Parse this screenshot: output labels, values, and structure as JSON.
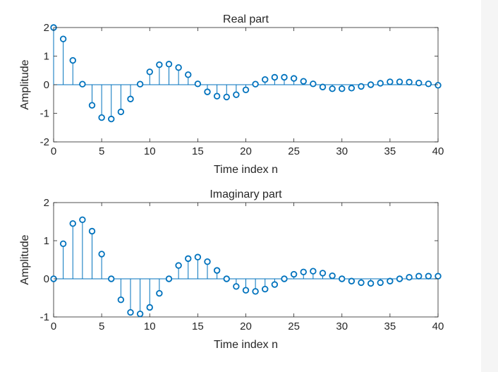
{
  "colors": {
    "stem": "#0072BD",
    "axis": "#262626",
    "background": "#ffffff",
    "page": "#f5f5f5"
  },
  "chart_data": [
    {
      "type": "stem",
      "title": "Real part",
      "xlabel": "Time index n",
      "ylabel": "Amplitude",
      "xlim": [
        0,
        40
      ],
      "ylim": [
        -2,
        2
      ],
      "xticks": [
        0,
        5,
        10,
        15,
        20,
        25,
        30,
        35,
        40
      ],
      "yticks": [
        -2,
        -1,
        0,
        1,
        2
      ],
      "x": [
        0,
        1,
        2,
        3,
        4,
        5,
        6,
        7,
        8,
        9,
        10,
        11,
        12,
        13,
        14,
        15,
        16,
        17,
        18,
        19,
        20,
        21,
        22,
        23,
        24,
        25,
        26,
        27,
        28,
        29,
        30,
        31,
        32,
        33,
        34,
        35,
        36,
        37,
        38,
        39,
        40
      ],
      "values": [
        2.0,
        1.6,
        0.85,
        0.02,
        -0.72,
        -1.15,
        -1.2,
        -0.95,
        -0.5,
        0.02,
        0.45,
        0.7,
        0.72,
        0.6,
        0.35,
        0.03,
        -0.25,
        -0.4,
        -0.43,
        -0.35,
        -0.18,
        0.02,
        0.18,
        0.26,
        0.26,
        0.22,
        0.12,
        0.03,
        -0.08,
        -0.14,
        -0.14,
        -0.12,
        -0.06,
        0.0,
        0.05,
        0.1,
        0.1,
        0.09,
        0.06,
        0.03,
        -0.02
      ]
    },
    {
      "type": "stem",
      "title": "Imaginary part",
      "xlabel": "Time index n",
      "ylabel": "Amplitude",
      "xlim": [
        0,
        40
      ],
      "ylim": [
        -1,
        2
      ],
      "xticks": [
        0,
        5,
        10,
        15,
        20,
        25,
        30,
        35,
        40
      ],
      "yticks": [
        -1,
        0,
        1,
        2
      ],
      "x": [
        0,
        1,
        2,
        3,
        4,
        5,
        6,
        7,
        8,
        9,
        10,
        11,
        12,
        13,
        14,
        15,
        16,
        17,
        18,
        19,
        20,
        21,
        22,
        23,
        24,
        25,
        26,
        27,
        28,
        29,
        30,
        31,
        32,
        33,
        34,
        35,
        36,
        37,
        38,
        39,
        40
      ],
      "values": [
        0.0,
        0.92,
        1.45,
        1.55,
        1.25,
        0.65,
        0.0,
        -0.55,
        -0.88,
        -0.92,
        -0.75,
        -0.38,
        0.0,
        0.35,
        0.53,
        0.57,
        0.45,
        0.22,
        0.0,
        -0.2,
        -0.3,
        -0.33,
        -0.27,
        -0.15,
        0.0,
        0.12,
        0.18,
        0.2,
        0.15,
        0.08,
        0.0,
        -0.06,
        -0.1,
        -0.12,
        -0.1,
        -0.06,
        0.0,
        0.04,
        0.07,
        0.07,
        0.07
      ]
    }
  ]
}
